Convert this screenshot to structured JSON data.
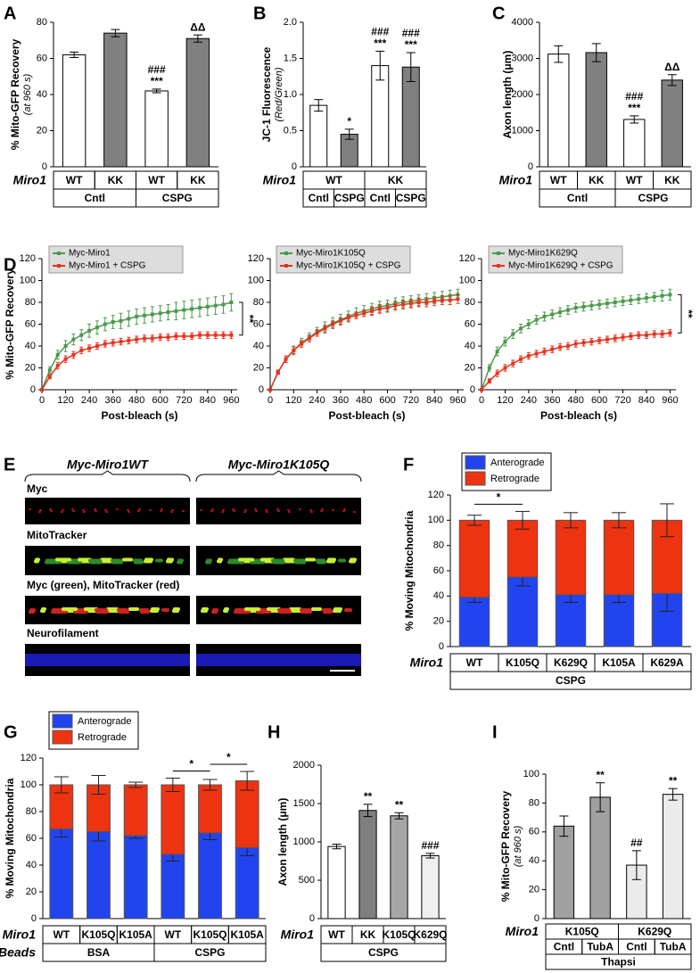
{
  "chart_data": [
    {
      "type": "bar",
      "panel": "A",
      "ylabel": "% Mito-GFP Recovery",
      "ylabel_note": "(at 960 s)",
      "ylim": [
        0,
        80
      ],
      "yticks": [
        0,
        20,
        40,
        60,
        80
      ],
      "values": [
        62,
        74,
        42,
        71
      ],
      "errors": [
        1.5,
        2,
        1,
        2
      ],
      "colors": [
        "#ffffff",
        "#808080",
        "#ffffff",
        "#808080"
      ],
      "annotations": [
        null,
        null,
        [
          "###",
          "***"
        ],
        [
          "ΔΔ"
        ]
      ],
      "table": [
        {
          "label": "Miro1",
          "cells": [
            "WT",
            "KK",
            "WT",
            "KK"
          ]
        },
        {
          "cells": [
            "Cntl",
            "CSPG"
          ]
        }
      ]
    },
    {
      "type": "bar",
      "panel": "B",
      "ylabel": "JC-1 Fluorescence",
      "ylabel_note": "(Red/Green)",
      "ylim": [
        0,
        2
      ],
      "yticks": [
        0,
        0.5,
        {
          "value": 1,
          "label": "1.0"
        },
        1.5,
        {
          "value": 2,
          "label": "2.0"
        }
      ],
      "values": [
        0.85,
        0.45,
        1.4,
        1.38
      ],
      "errors": [
        0.08,
        0.07,
        0.2,
        0.2
      ],
      "colors": [
        "#ffffff",
        "#808080",
        "#ffffff",
        "#808080"
      ],
      "annotations": [
        null,
        [
          "*"
        ],
        [
          "###",
          "***"
        ],
        [
          "###",
          "***"
        ]
      ],
      "table": [
        {
          "label": "Miro1",
          "cells": [
            "WT",
            "KK"
          ]
        },
        {
          "cells": [
            "Cntl",
            "CSPG",
            "Cntl",
            "CSPG"
          ]
        }
      ]
    },
    {
      "type": "bar",
      "panel": "C",
      "ylabel": "Axon length (μm)",
      "ylim": [
        0,
        4000
      ],
      "yticks": [
        0,
        1000,
        2000,
        3000,
        4000
      ],
      "values": [
        3120,
        3160,
        1310,
        2400
      ],
      "errors": [
        230,
        250,
        100,
        150
      ],
      "colors": [
        "#ffffff",
        "#808080",
        "#ffffff",
        "#808080"
      ],
      "annotations": [
        null,
        null,
        [
          "###",
          "***"
        ],
        [
          "ΔΔ"
        ]
      ],
      "table": [
        {
          "label": "Miro1",
          "cells": [
            "WT",
            "KK",
            "WT",
            "KK"
          ]
        },
        {
          "cells": [
            "Cntl",
            "CSPG"
          ]
        }
      ]
    },
    {
      "type": "line",
      "panel": "D",
      "ylabel": "% Mito-GFP Recovery",
      "xlabel": "Post-bleach (s)",
      "xlim": [
        0,
        990
      ],
      "xticks": [
        0,
        120,
        240,
        360,
        480,
        600,
        720,
        840,
        960
      ],
      "ylim": [
        0,
        120
      ],
      "yticks": [
        0,
        20,
        40,
        60,
        80,
        100,
        120
      ],
      "bracket": "**",
      "x": [
        0,
        40,
        80,
        120,
        160,
        200,
        240,
        280,
        320,
        360,
        400,
        440,
        480,
        520,
        560,
        600,
        640,
        680,
        720,
        760,
        800,
        840,
        880,
        920,
        960
      ],
      "series": [
        {
          "name": "Myc-Miro1",
          "color": "#4a9a4a",
          "values": [
            0,
            18,
            32,
            40,
            46,
            50,
            54,
            57,
            60,
            62,
            63,
            65,
            67,
            68,
            69,
            70,
            71,
            72,
            73,
            74,
            75,
            76,
            77,
            78,
            80
          ],
          "errors": [
            0,
            3,
            4,
            5,
            5,
            5,
            6,
            6,
            6,
            6,
            7,
            7,
            7,
            7,
            7,
            7,
            7,
            8,
            8,
            8,
            8,
            8,
            8,
            8,
            8
          ]
        },
        {
          "name": "Myc-Miro1 + CSPG",
          "color": "#e8321e",
          "values": [
            0,
            12,
            22,
            28,
            32,
            36,
            38,
            40,
            42,
            43,
            44,
            45,
            46,
            47,
            47,
            48,
            48,
            49,
            49,
            49,
            50,
            50,
            50,
            50,
            50
          ],
          "errors": [
            0,
            2,
            3,
            3,
            3,
            3,
            3,
            3,
            3,
            3,
            3,
            3,
            3,
            3,
            3,
            3,
            3,
            3,
            3,
            3,
            3,
            3,
            3,
            3,
            3
          ]
        }
      ]
    },
    {
      "type": "line",
      "xlabel": "Post-bleach (s)",
      "xlim": [
        0,
        990
      ],
      "xticks": [
        0,
        120,
        240,
        360,
        480,
        600,
        720,
        840,
        960
      ],
      "ylim": [
        0,
        120
      ],
      "yticks": [
        0,
        20,
        40,
        60,
        80,
        100,
        120
      ],
      "x": [
        0,
        40,
        80,
        120,
        160,
        200,
        240,
        280,
        320,
        360,
        400,
        440,
        480,
        520,
        560,
        600,
        640,
        680,
        720,
        760,
        800,
        840,
        880,
        920,
        960
      ],
      "series": [
        {
          "name": "Myc-Miro1K105Q",
          "color": "#4a9a4a",
          "values": [
            0,
            16,
            28,
            36,
            43,
            48,
            53,
            57,
            61,
            64,
            67,
            70,
            72,
            74,
            76,
            77,
            79,
            80,
            81,
            82,
            83,
            84,
            85,
            86,
            87
          ],
          "errors": [
            0,
            2,
            3,
            4,
            4,
            4,
            4,
            5,
            5,
            5,
            5,
            5,
            5,
            5,
            5,
            5,
            5,
            5,
            5,
            5,
            5,
            5,
            5,
            5,
            5
          ]
        },
        {
          "name": "Myc-Miro1K105Q + CSPG",
          "color": "#e8321e",
          "values": [
            0,
            16,
            28,
            36,
            42,
            47,
            52,
            56,
            60,
            63,
            66,
            68,
            70,
            72,
            74,
            75,
            77,
            78,
            79,
            80,
            80,
            81,
            82,
            82,
            83
          ],
          "errors": [
            0,
            2,
            3,
            3,
            3,
            3,
            3,
            3,
            3,
            3,
            3,
            3,
            3,
            4,
            4,
            4,
            4,
            4,
            4,
            4,
            4,
            4,
            4,
            4,
            4
          ]
        }
      ]
    },
    {
      "type": "line",
      "xlabel": "Post-bleach (s)",
      "xlim": [
        0,
        990
      ],
      "xticks": [
        0,
        120,
        240,
        360,
        480,
        600,
        720,
        840,
        960
      ],
      "ylim": [
        0,
        120
      ],
      "yticks": [
        0,
        20,
        40,
        60,
        80,
        100,
        120
      ],
      "bracket": "**",
      "x": [
        0,
        40,
        80,
        120,
        160,
        200,
        240,
        280,
        320,
        360,
        400,
        440,
        480,
        520,
        560,
        600,
        640,
        680,
        720,
        760,
        800,
        840,
        880,
        920,
        960
      ],
      "series": [
        {
          "name": "Myc-Miro1K629Q",
          "color": "#4a9a4a",
          "values": [
            0,
            20,
            35,
            44,
            51,
            56,
            60,
            64,
            67,
            69,
            71,
            73,
            75,
            76,
            77,
            78,
            79,
            80,
            81,
            82,
            83,
            84,
            85,
            86,
            87
          ],
          "errors": [
            0,
            3,
            4,
            4,
            4,
            4,
            4,
            4,
            4,
            4,
            4,
            4,
            4,
            4,
            4,
            4,
            4,
            4,
            4,
            4,
            4,
            4,
            4,
            5,
            5
          ]
        },
        {
          "name": "Myc-Miro1K629Q + CSPG",
          "color": "#e8321e",
          "values": [
            0,
            8,
            15,
            20,
            24,
            28,
            31,
            33,
            35,
            37,
            39,
            40,
            42,
            43,
            44,
            45,
            46,
            47,
            48,
            49,
            50,
            50,
            51,
            51,
            52
          ],
          "errors": [
            0,
            2,
            3,
            3,
            3,
            3,
            3,
            3,
            3,
            3,
            3,
            3,
            3,
            3,
            3,
            3,
            3,
            3,
            3,
            3,
            3,
            3,
            3,
            3,
            3
          ]
        }
      ]
    },
    {
      "type": "image",
      "panel": "E",
      "headers": [
        "Myc-Miro1WT",
        "Myc-Miro1K105Q"
      ],
      "rows": [
        "Myc",
        "MitoTracker",
        "Myc (green), MitoTracker (red)",
        "Neurofilament"
      ]
    },
    {
      "type": "stacked_bar",
      "panel": "F",
      "ylabel": "% Moving Mitochondria",
      "ylim": [
        0,
        120
      ],
      "yticks": [
        0,
        20,
        40,
        60,
        80,
        100,
        120
      ],
      "series": [
        {
          "name": "Anterograde",
          "color": "#2244ee",
          "values": [
            39,
            55,
            41,
            41,
            42
          ],
          "errors": [
            4,
            7,
            6,
            6,
            14
          ]
        },
        {
          "name": "Retrograde",
          "color": "#ee3311",
          "values": [
            61,
            45,
            59,
            59,
            58
          ],
          "errors": [
            4,
            7,
            6,
            6,
            13
          ]
        }
      ],
      "brackets": [
        {
          "text": "*",
          "from": 0,
          "to": 1
        }
      ],
      "table": [
        {
          "label": "Miro1",
          "cells": [
            "WT",
            "K105Q",
            "K629Q",
            "K105A",
            "K629A"
          ]
        },
        {
          "cells": [
            "CSPG"
          ]
        }
      ]
    },
    {
      "type": "stacked_bar",
      "panel": "G",
      "ylabel": "% Moving Mitochondria",
      "ylim": [
        0,
        120
      ],
      "yticks": [
        0,
        20,
        40,
        60,
        80,
        100,
        120
      ],
      "series": [
        {
          "name": "Anterograde",
          "color": "#2244ee",
          "values": [
            67,
            65,
            62,
            48,
            64,
            53
          ],
          "errors": [
            6,
            7,
            2,
            5,
            5,
            6
          ]
        },
        {
          "name": "Retrograde",
          "color": "#ee3311",
          "values": [
            33,
            35,
            38,
            52,
            36,
            50
          ],
          "errors": [
            6,
            7,
            2,
            5,
            4,
            7
          ]
        }
      ],
      "brackets": [
        {
          "text": "*",
          "from": 3,
          "to": 4
        },
        {
          "text": "*",
          "from": 4,
          "to": 5
        }
      ],
      "table": [
        {
          "label": "Miro1",
          "cells": [
            "WT",
            "K105Q",
            "K105A",
            "WT",
            "K105Q",
            "K105A"
          ]
        },
        {
          "label": "Beads",
          "cells": [
            "BSA",
            "CSPG"
          ]
        }
      ]
    },
    {
      "type": "bar",
      "panel": "H",
      "ylabel": "Axon length (μm)",
      "ylim": [
        0,
        2000
      ],
      "yticks": [
        0,
        500,
        1000,
        1500,
        2000
      ],
      "values": [
        940,
        1410,
        1340,
        820
      ],
      "errors": [
        30,
        80,
        40,
        30
      ],
      "colors": [
        "#ffffff",
        "#7f7f7f",
        "#a6a6a6",
        "#f0f0f0"
      ],
      "annotations": [
        null,
        [
          "**"
        ],
        [
          "**"
        ],
        [
          "###"
        ]
      ],
      "table": [
        {
          "label": "Miro1",
          "cells": [
            "WT",
            "KK",
            "K105Q",
            "K629Q"
          ]
        },
        {
          "cells": [
            "CSPG"
          ]
        }
      ]
    },
    {
      "type": "bar",
      "panel": "I",
      "ylabel": "% Mito-GFP Recovery",
      "ylabel_note": "(at 960 s)",
      "ylim": [
        0,
        100
      ],
      "yticks": [
        0,
        20,
        40,
        60,
        80,
        100
      ],
      "values": [
        64,
        84,
        37,
        86
      ],
      "errors": [
        7,
        10,
        10,
        4
      ],
      "colors": [
        "#a0a0a0",
        "#a0a0a0",
        "#ebebeb",
        "#ebebeb"
      ],
      "annotations": [
        null,
        [
          "**"
        ],
        [
          "##"
        ],
        [
          "**"
        ]
      ],
      "table": [
        {
          "label": "Miro1",
          "cells": [
            "K105Q",
            "K629Q"
          ]
        },
        {
          "cells": [
            "Cntl",
            "TubA",
            "Cntl",
            "TubA"
          ]
        },
        {
          "cells": [
            "Thapsi"
          ]
        }
      ]
    }
  ]
}
